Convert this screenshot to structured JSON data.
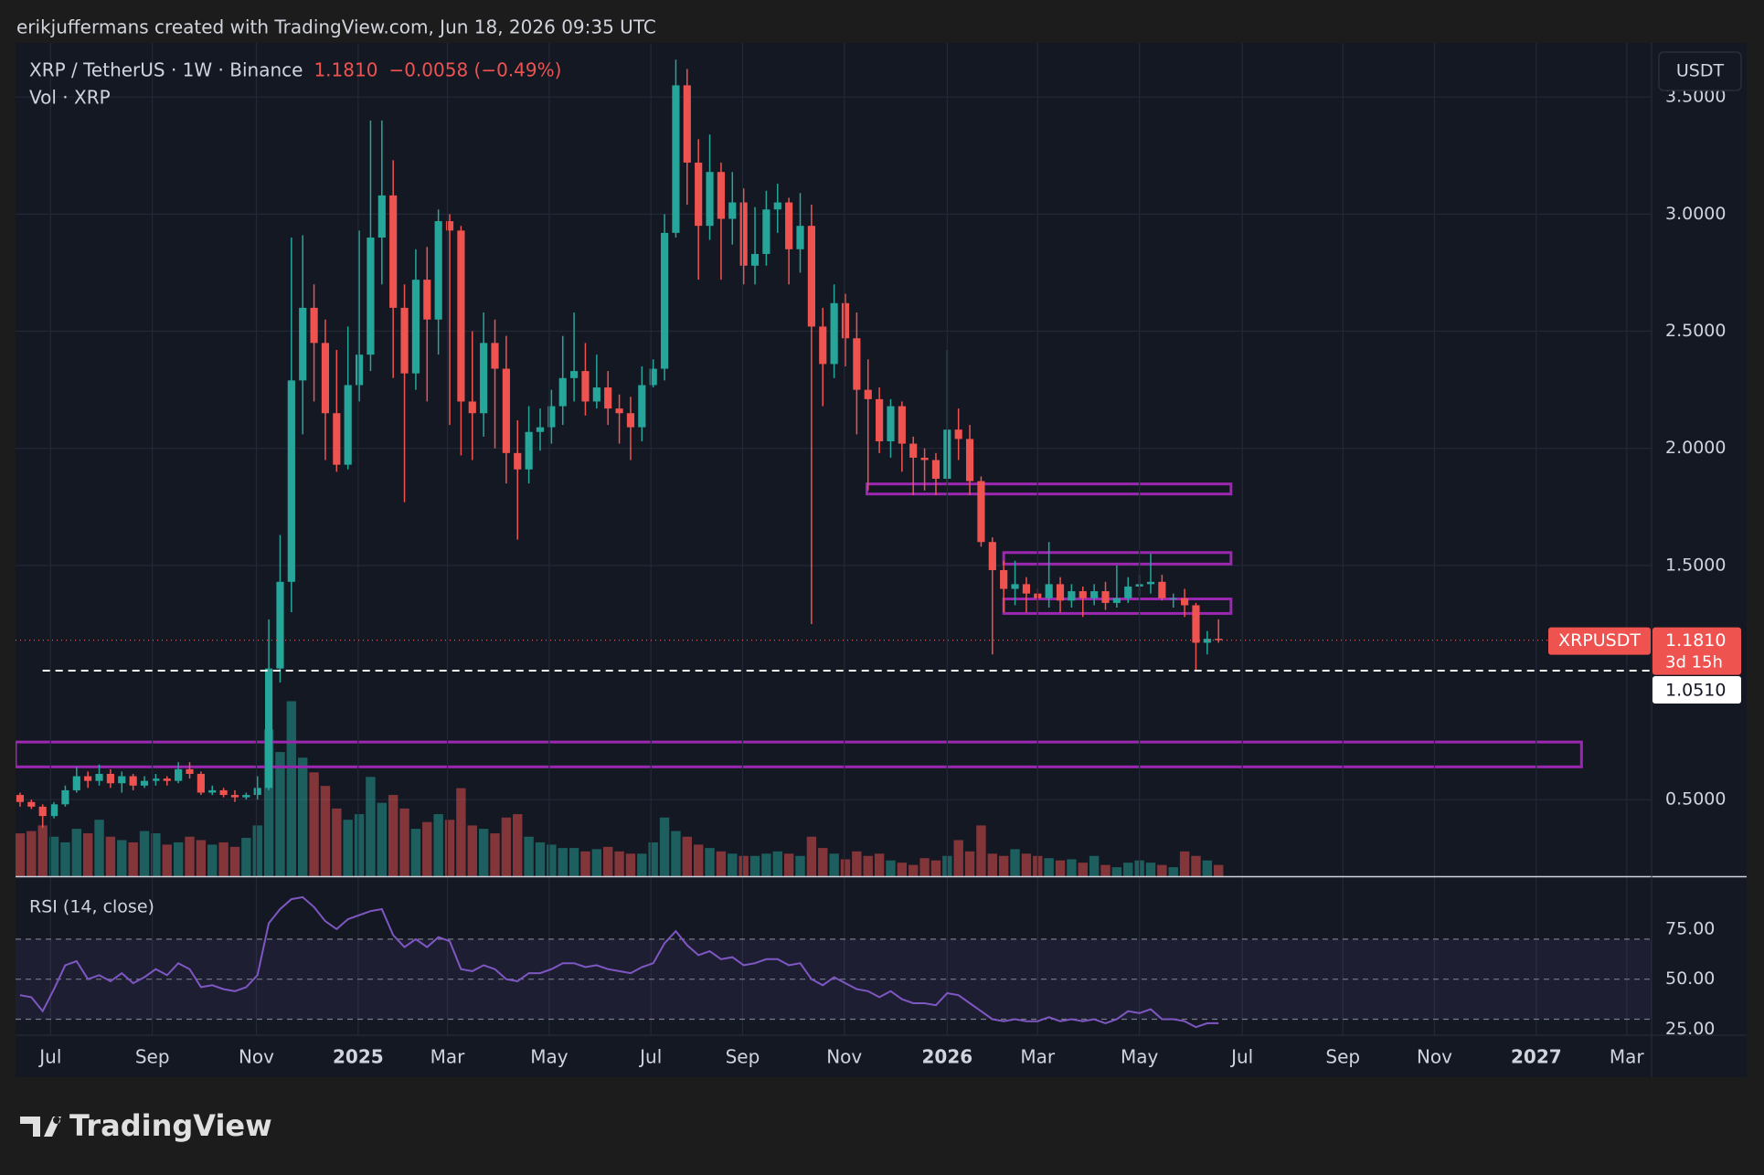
{
  "header": "erikjuffermans created with TradingView.com, Jun 18, 2026 09:35 UTC",
  "footer": "TradingView",
  "chart_data": {
    "type": "candlestick",
    "title": "XRP / TetherUS · 1W · Binance",
    "price": "1.1810",
    "change": "−0.0058 (−0.49%)",
    "volume_title": "Vol · XRP",
    "currency": "USDT",
    "symbol": "XRPUSDT",
    "countdown": "3d 15h",
    "up_color": "#26a69a",
    "down_color": "#ef5350",
    "grid": true,
    "open": [
      0.52,
      0.49,
      0.47,
      0.43,
      0.48,
      0.54,
      0.6,
      0.58,
      0.61,
      0.57,
      0.6,
      0.56,
      0.58,
      0.59,
      0.58,
      0.63,
      0.61,
      0.53,
      0.54,
      0.52,
      0.51,
      0.52,
      0.55,
      1.06,
      1.43,
      2.29,
      2.6,
      2.45,
      2.15,
      1.93,
      2.27,
      2.4,
      2.9,
      3.08,
      2.6,
      2.32,
      2.72,
      2.55,
      2.97,
      2.93,
      2.2,
      2.15,
      2.45,
      2.34,
      1.98,
      1.91,
      2.07,
      2.09,
      2.18,
      2.3,
      2.33,
      2.2,
      2.26,
      2.17,
      2.15,
      2.09,
      2.27,
      2.34,
      2.92,
      3.55,
      3.22,
      2.95,
      3.18,
      2.98,
      3.05,
      2.78,
      2.83,
      3.02,
      3.05,
      2.85,
      2.95,
      2.52,
      2.36,
      2.62,
      2.47,
      2.25,
      2.21,
      2.03,
      2.18,
      2.02,
      1.96,
      1.95,
      1.87,
      2.08,
      2.04,
      1.86,
      1.6,
      1.48,
      1.4,
      1.42,
      1.38,
      1.36,
      1.42,
      1.35,
      1.39,
      1.36,
      1.39,
      1.34,
      1.36,
      1.41,
      1.42,
      1.43,
      1.36,
      1.36,
      1.33,
      1.17,
      1.1868
    ],
    "high": [
      0.53,
      0.5,
      0.48,
      0.49,
      0.56,
      0.64,
      0.62,
      0.65,
      0.63,
      0.62,
      0.61,
      0.6,
      0.61,
      0.6,
      0.66,
      0.66,
      0.62,
      0.56,
      0.55,
      0.54,
      0.53,
      0.6,
      1.27,
      1.63,
      2.9,
      2.91,
      2.7,
      2.55,
      2.42,
      2.52,
      2.93,
      3.4,
      3.4,
      3.23,
      2.7,
      2.85,
      2.86,
      3.02,
      3.0,
      2.95,
      2.5,
      2.58,
      2.55,
      2.48,
      2.12,
      2.18,
      2.17,
      2.25,
      2.48,
      2.58,
      2.45,
      2.4,
      2.33,
      2.23,
      2.22,
      2.35,
      2.38,
      3.0,
      3.66,
      3.62,
      3.32,
      3.34,
      3.22,
      3.18,
      3.11,
      3.03,
      3.1,
      3.13,
      3.07,
      3.09,
      3.04,
      2.6,
      2.7,
      2.66,
      2.58,
      2.38,
      2.26,
      2.21,
      2.2,
      2.05,
      2.0,
      1.98,
      2.42,
      2.17,
      2.1,
      1.88,
      1.62,
      1.52,
      1.52,
      1.45,
      1.4,
      1.6,
      1.45,
      1.42,
      1.41,
      1.42,
      1.43,
      1.5,
      1.45,
      1.46,
      1.55,
      1.46,
      1.38,
      1.4,
      1.34,
      1.22,
      1.27
    ],
    "low": [
      0.47,
      0.46,
      0.38,
      0.42,
      0.47,
      0.53,
      0.55,
      0.56,
      0.55,
      0.53,
      0.54,
      0.55,
      0.56,
      0.56,
      0.57,
      0.59,
      0.52,
      0.52,
      0.51,
      0.49,
      0.5,
      0.5,
      0.54,
      1.0,
      1.3,
      2.06,
      2.2,
      1.95,
      1.9,
      1.91,
      2.2,
      2.33,
      2.7,
      2.3,
      1.77,
      2.25,
      2.2,
      2.4,
      2.1,
      1.97,
      1.95,
      2.05,
      2.0,
      1.85,
      1.61,
      1.85,
      1.99,
      2.02,
      2.1,
      2.2,
      2.14,
      2.17,
      2.1,
      2.02,
      1.95,
      2.03,
      2.26,
      2.29,
      2.9,
      3.04,
      2.72,
      2.89,
      2.72,
      2.87,
      2.7,
      2.7,
      2.78,
      2.92,
      2.7,
      2.75,
      1.25,
      2.18,
      2.3,
      2.35,
      2.06,
      1.82,
      1.98,
      1.96,
      1.9,
      1.8,
      1.82,
      1.8,
      1.85,
      1.95,
      1.8,
      1.58,
      1.12,
      1.3,
      1.33,
      1.3,
      1.3,
      1.32,
      1.3,
      1.32,
      1.28,
      1.33,
      1.31,
      1.32,
      1.34,
      1.37,
      1.38,
      1.35,
      1.32,
      1.28,
      1.051,
      1.12,
      1.17
    ],
    "close": [
      0.49,
      0.47,
      0.43,
      0.48,
      0.54,
      0.6,
      0.58,
      0.61,
      0.57,
      0.6,
      0.56,
      0.58,
      0.59,
      0.58,
      0.63,
      0.61,
      0.53,
      0.54,
      0.52,
      0.51,
      0.52,
      0.55,
      1.06,
      1.43,
      2.29,
      2.6,
      2.45,
      2.15,
      1.93,
      2.27,
      2.4,
      2.9,
      3.08,
      2.6,
      2.32,
      2.72,
      2.55,
      2.97,
      2.93,
      2.2,
      2.15,
      2.45,
      2.34,
      1.98,
      1.91,
      2.07,
      2.09,
      2.18,
      2.3,
      2.33,
      2.2,
      2.26,
      2.17,
      2.15,
      2.09,
      2.27,
      2.34,
      2.92,
      3.55,
      3.22,
      2.95,
      3.18,
      2.98,
      3.05,
      2.78,
      2.83,
      3.02,
      3.05,
      2.85,
      2.95,
      2.52,
      2.36,
      2.62,
      2.47,
      2.25,
      2.21,
      2.03,
      2.18,
      2.02,
      1.96,
      1.95,
      1.87,
      2.08,
      2.04,
      1.86,
      1.6,
      1.48,
      1.4,
      1.42,
      1.38,
      1.36,
      1.42,
      1.35,
      1.39,
      1.36,
      1.39,
      1.34,
      1.36,
      1.41,
      1.42,
      1.43,
      1.36,
      1.36,
      1.33,
      1.17,
      1.1868,
      1.181
    ],
    "volume": [
      38,
      40,
      45,
      35,
      30,
      42,
      38,
      50,
      35,
      32,
      30,
      40,
      38,
      28,
      30,
      35,
      32,
      28,
      30,
      26,
      34,
      45,
      130,
      110,
      155,
      105,
      92,
      80,
      60,
      50,
      55,
      88,
      65,
      72,
      60,
      42,
      48,
      55,
      50,
      78,
      45,
      42,
      38,
      52,
      55,
      35,
      30,
      28,
      25,
      25,
      22,
      24,
      26,
      22,
      20,
      20,
      30,
      52,
      40,
      35,
      28,
      25,
      22,
      20,
      18,
      18,
      20,
      22,
      20,
      18,
      35,
      25,
      20,
      15,
      22,
      18,
      20,
      14,
      12,
      10,
      16,
      14,
      18,
      32,
      22,
      45,
      20,
      18,
      24,
      20,
      18,
      16,
      14,
      15,
      12,
      18,
      10,
      8,
      12,
      14,
      12,
      10,
      8,
      22,
      18,
      14,
      10
    ],
    "ylim": [
      0.173,
      3.731
    ],
    "yticks": [
      {
        "value": 0.5,
        "label": "0.5000"
      },
      {
        "value": 1.5,
        "label": "1.5000"
      },
      {
        "value": 2,
        "label": "2.0000"
      },
      {
        "value": 2.5,
        "label": "2.5000"
      },
      {
        "value": 3,
        "label": "3.0000"
      },
      {
        "value": 3.5,
        "label": "3.5000"
      }
    ],
    "xlim": [
      -0.4,
      144.3
    ],
    "xticks": [
      {
        "value": 2.7,
        "label": "Jul"
      },
      {
        "value": 11.7,
        "label": "Sep"
      },
      {
        "value": 20.9,
        "label": "Nov"
      },
      {
        "value": 29.9,
        "label": "2025"
      },
      {
        "value": 37.8,
        "label": "Mar"
      },
      {
        "value": 46.8,
        "label": "May"
      },
      {
        "value": 55.8,
        "label": "Jul"
      },
      {
        "value": 63.9,
        "label": "Sep"
      },
      {
        "value": 72.9,
        "label": "Nov"
      },
      {
        "value": 82,
        "label": "2026"
      },
      {
        "value": 90,
        "label": "Mar"
      },
      {
        "value": 99,
        "label": "May"
      },
      {
        "value": 108.1,
        "label": "Jul"
      },
      {
        "value": 117,
        "label": "Sep"
      },
      {
        "value": 125.1,
        "label": "Nov"
      },
      {
        "value": 134.1,
        "label": "2027"
      },
      {
        "value": 142.1,
        "label": "Mar"
      }
    ],
    "zone_color": "#9c27b0",
    "zones": [
      {
        "from": 74.9,
        "to": 107.1,
        "low": 1.805,
        "high": 1.848
      },
      {
        "from": 87,
        "to": 107.1,
        "low": 1.506,
        "high": 1.555
      },
      {
        "from": 87,
        "to": 107.1,
        "low": 1.295,
        "high": 1.357
      },
      {
        "from": -0.4,
        "to": 138.1,
        "low": 0.64,
        "high": 0.746
      }
    ],
    "low_line": {
      "value": 1.051,
      "label": "1.0510"
    },
    "rsi": {
      "title": "RSI (14, close)",
      "color": "#7e57c2",
      "values": [
        42,
        41,
        34,
        45,
        57,
        59,
        50,
        52,
        49,
        53,
        48,
        51,
        55,
        52,
        58,
        55,
        46,
        47,
        45,
        44,
        46,
        52,
        78,
        85,
        90,
        91,
        86,
        79,
        75,
        80,
        82,
        84,
        85,
        72,
        66,
        70,
        66,
        71,
        69,
        55,
        54,
        57,
        55,
        50,
        49,
        53,
        53,
        55,
        58,
        58,
        56,
        57,
        55,
        54,
        53,
        56,
        58,
        68,
        74,
        67,
        62,
        64,
        60,
        61,
        57,
        58,
        60,
        60,
        57,
        58,
        50,
        47,
        51,
        48,
        45,
        44,
        41,
        44,
        40,
        38,
        38,
        37,
        43,
        42,
        38,
        34,
        30,
        29,
        30,
        29,
        29,
        31,
        29,
        30,
        29,
        30,
        28,
        30,
        34,
        33,
        35,
        30,
        30,
        29,
        26,
        28,
        28
      ],
      "ylim": [
        22,
        101
      ],
      "yticks": [
        {
          "value": 75,
          "label": "75.00"
        },
        {
          "value": 50,
          "label": "50.00"
        },
        {
          "value": 25,
          "label": "25.00"
        }
      ],
      "levels": [
        70,
        50,
        30
      ]
    }
  }
}
